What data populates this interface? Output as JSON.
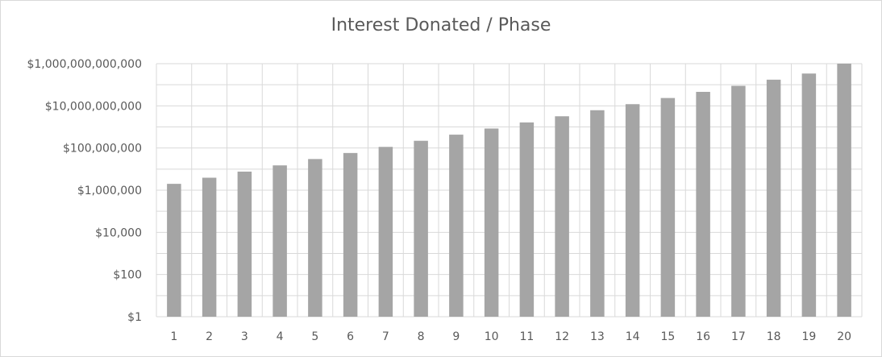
{
  "chart_data": {
    "type": "bar",
    "title": "Interest Donated / Phase",
    "xlabel": "",
    "ylabel": "",
    "y_scale": "log",
    "ylim": [
      1,
      1000000000000
    ],
    "y_ticks": [
      1,
      100,
      10000,
      1000000,
      100000000,
      10000000000,
      1000000000000
    ],
    "y_tick_labels": [
      "$1",
      "$100",
      "$10,000",
      "$1,000,000",
      "$100,000,000",
      "$10,000,000,000",
      "$1,000,000,000,000"
    ],
    "grid": true,
    "legend": "none",
    "bar_color": "#a5a5a5",
    "grid_color": "#d9d9d9",
    "categories": [
      "1",
      "2",
      "3",
      "4",
      "5",
      "6",
      "7",
      "8",
      "9",
      "10",
      "11",
      "12",
      "13",
      "14",
      "15",
      "16",
      "17",
      "18",
      "19",
      "20"
    ],
    "values": [
      2000000,
      3900000,
      7600000,
      15000000,
      30000000,
      58000000,
      113000000,
      220000000,
      430000000,
      840000000,
      1630000000,
      3200000000,
      6200000000,
      12000000000,
      23500000000,
      46000000000,
      89000000000,
      174000000000,
      340000000000,
      1000000000000
    ]
  }
}
